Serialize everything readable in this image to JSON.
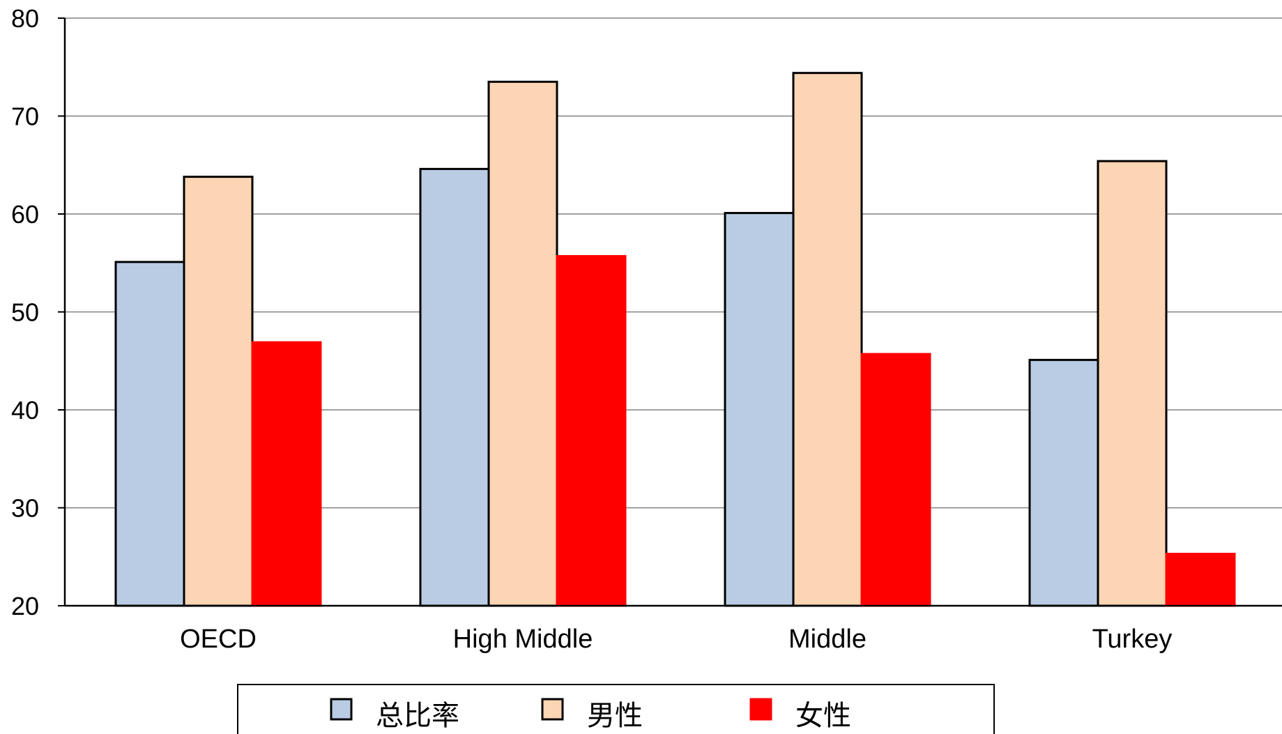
{
  "chart_data": {
    "type": "bar",
    "categories": [
      "OECD",
      "High Middle",
      "Middle",
      "Turkey"
    ],
    "series": [
      {
        "name": "总比率",
        "values": [
          55.1,
          64.6,
          60.1,
          45.1
        ],
        "color": "#b9cce4",
        "outline": "#000000"
      },
      {
        "name": "男性",
        "values": [
          63.8,
          73.5,
          74.4,
          65.4
        ],
        "color": "#fcd5b4",
        "outline": "#000000"
      },
      {
        "name": "女性",
        "values": [
          46.9,
          55.7,
          45.7,
          25.3
        ],
        "color": "#ff0000",
        "outline": "#ff0000"
      }
    ],
    "ylim": [
      20,
      80
    ],
    "yticks": [
      "20",
      "30",
      "40",
      "50",
      "60",
      "70",
      "80"
    ],
    "grid": true,
    "legend_position": "bottom",
    "title": "",
    "xlabel": "",
    "ylabel": ""
  }
}
